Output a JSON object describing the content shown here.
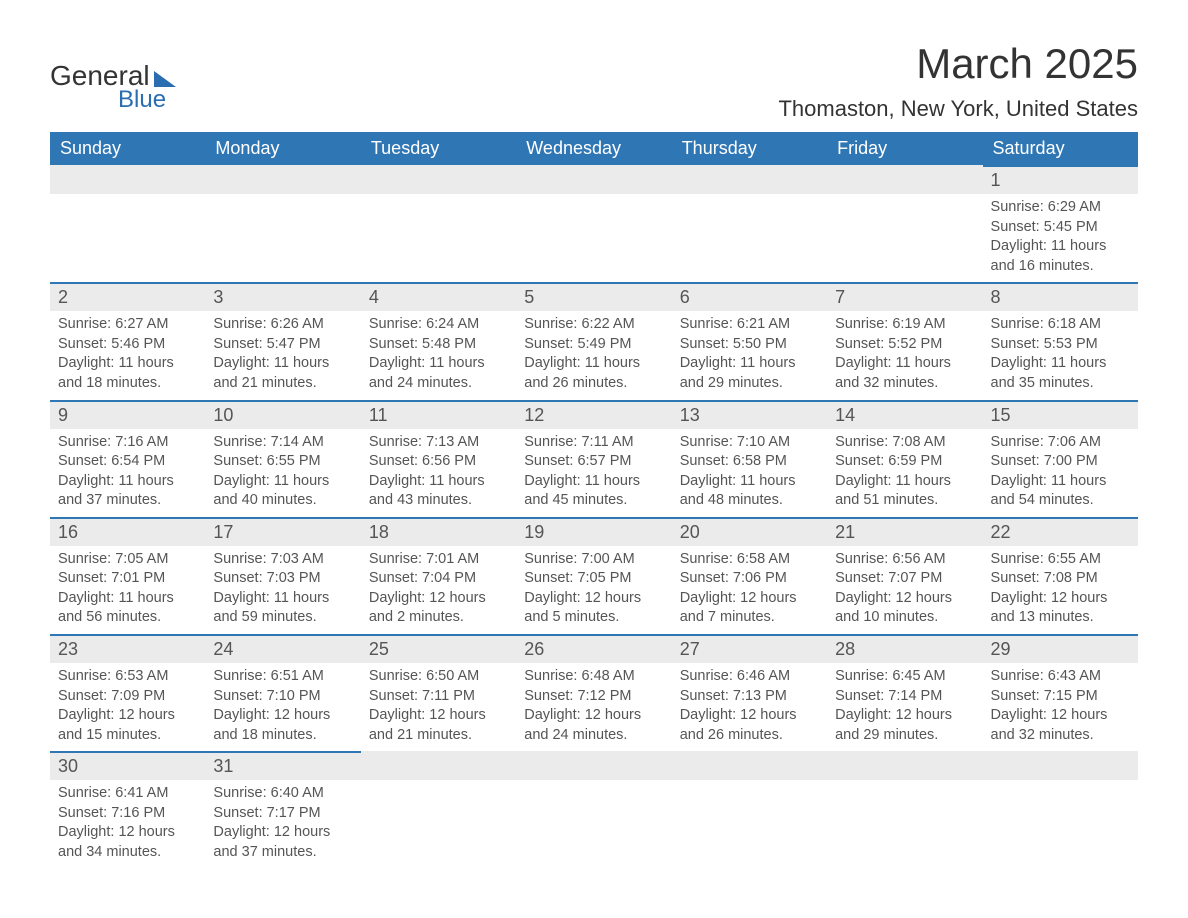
{
  "logo": {
    "text1": "General",
    "text2": "Blue",
    "accent_color": "#2a6db0"
  },
  "title": "March 2025",
  "location": "Thomaston, New York, United States",
  "header_bg": "#2f76b5",
  "daynum_bg": "#ebebeb",
  "daynum_border": "#2f76b5",
  "text_color": "#555555",
  "weekdays": [
    "Sunday",
    "Monday",
    "Tuesday",
    "Wednesday",
    "Thursday",
    "Friday",
    "Saturday"
  ],
  "weeks": [
    [
      null,
      null,
      null,
      null,
      null,
      null,
      {
        "d": "1",
        "sr": "6:29 AM",
        "ss": "5:45 PM",
        "dl": "11 hours and 16 minutes."
      }
    ],
    [
      {
        "d": "2",
        "sr": "6:27 AM",
        "ss": "5:46 PM",
        "dl": "11 hours and 18 minutes."
      },
      {
        "d": "3",
        "sr": "6:26 AM",
        "ss": "5:47 PM",
        "dl": "11 hours and 21 minutes."
      },
      {
        "d": "4",
        "sr": "6:24 AM",
        "ss": "5:48 PM",
        "dl": "11 hours and 24 minutes."
      },
      {
        "d": "5",
        "sr": "6:22 AM",
        "ss": "5:49 PM",
        "dl": "11 hours and 26 minutes."
      },
      {
        "d": "6",
        "sr": "6:21 AM",
        "ss": "5:50 PM",
        "dl": "11 hours and 29 minutes."
      },
      {
        "d": "7",
        "sr": "6:19 AM",
        "ss": "5:52 PM",
        "dl": "11 hours and 32 minutes."
      },
      {
        "d": "8",
        "sr": "6:18 AM",
        "ss": "5:53 PM",
        "dl": "11 hours and 35 minutes."
      }
    ],
    [
      {
        "d": "9",
        "sr": "7:16 AM",
        "ss": "6:54 PM",
        "dl": "11 hours and 37 minutes."
      },
      {
        "d": "10",
        "sr": "7:14 AM",
        "ss": "6:55 PM",
        "dl": "11 hours and 40 minutes."
      },
      {
        "d": "11",
        "sr": "7:13 AM",
        "ss": "6:56 PM",
        "dl": "11 hours and 43 minutes."
      },
      {
        "d": "12",
        "sr": "7:11 AM",
        "ss": "6:57 PM",
        "dl": "11 hours and 45 minutes."
      },
      {
        "d": "13",
        "sr": "7:10 AM",
        "ss": "6:58 PM",
        "dl": "11 hours and 48 minutes."
      },
      {
        "d": "14",
        "sr": "7:08 AM",
        "ss": "6:59 PM",
        "dl": "11 hours and 51 minutes."
      },
      {
        "d": "15",
        "sr": "7:06 AM",
        "ss": "7:00 PM",
        "dl": "11 hours and 54 minutes."
      }
    ],
    [
      {
        "d": "16",
        "sr": "7:05 AM",
        "ss": "7:01 PM",
        "dl": "11 hours and 56 minutes."
      },
      {
        "d": "17",
        "sr": "7:03 AM",
        "ss": "7:03 PM",
        "dl": "11 hours and 59 minutes."
      },
      {
        "d": "18",
        "sr": "7:01 AM",
        "ss": "7:04 PM",
        "dl": "12 hours and 2 minutes."
      },
      {
        "d": "19",
        "sr": "7:00 AM",
        "ss": "7:05 PM",
        "dl": "12 hours and 5 minutes."
      },
      {
        "d": "20",
        "sr": "6:58 AM",
        "ss": "7:06 PM",
        "dl": "12 hours and 7 minutes."
      },
      {
        "d": "21",
        "sr": "6:56 AM",
        "ss": "7:07 PM",
        "dl": "12 hours and 10 minutes."
      },
      {
        "d": "22",
        "sr": "6:55 AM",
        "ss": "7:08 PM",
        "dl": "12 hours and 13 minutes."
      }
    ],
    [
      {
        "d": "23",
        "sr": "6:53 AM",
        "ss": "7:09 PM",
        "dl": "12 hours and 15 minutes."
      },
      {
        "d": "24",
        "sr": "6:51 AM",
        "ss": "7:10 PM",
        "dl": "12 hours and 18 minutes."
      },
      {
        "d": "25",
        "sr": "6:50 AM",
        "ss": "7:11 PM",
        "dl": "12 hours and 21 minutes."
      },
      {
        "d": "26",
        "sr": "6:48 AM",
        "ss": "7:12 PM",
        "dl": "12 hours and 24 minutes."
      },
      {
        "d": "27",
        "sr": "6:46 AM",
        "ss": "7:13 PM",
        "dl": "12 hours and 26 minutes."
      },
      {
        "d": "28",
        "sr": "6:45 AM",
        "ss": "7:14 PM",
        "dl": "12 hours and 29 minutes."
      },
      {
        "d": "29",
        "sr": "6:43 AM",
        "ss": "7:15 PM",
        "dl": "12 hours and 32 minutes."
      }
    ],
    [
      {
        "d": "30",
        "sr": "6:41 AM",
        "ss": "7:16 PM",
        "dl": "12 hours and 34 minutes."
      },
      {
        "d": "31",
        "sr": "6:40 AM",
        "ss": "7:17 PM",
        "dl": "12 hours and 37 minutes."
      },
      null,
      null,
      null,
      null,
      null
    ]
  ],
  "labels": {
    "sunrise": "Sunrise:",
    "sunset": "Sunset:",
    "daylight": "Daylight:"
  }
}
